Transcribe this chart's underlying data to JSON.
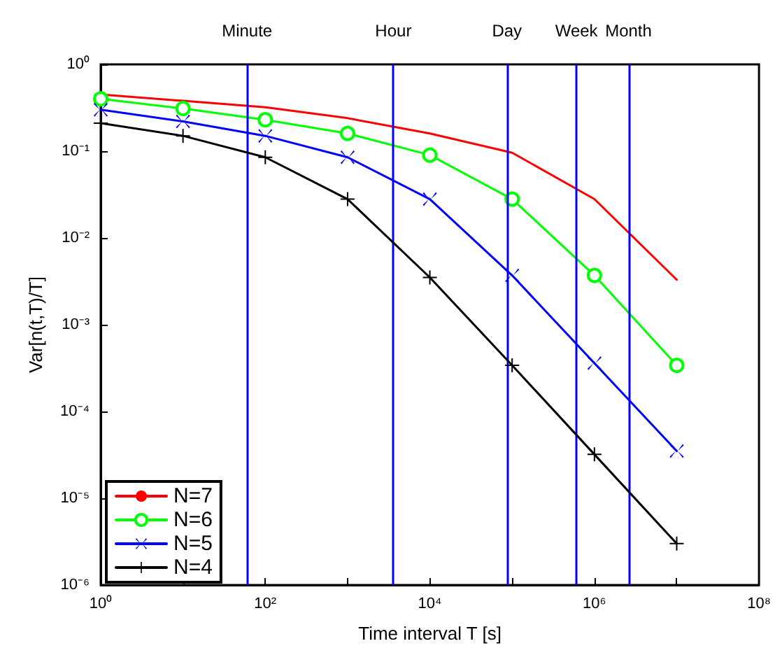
{
  "chart_data": {
    "type": "line",
    "xlabel": "Time interval T [s]",
    "ylabel": "Var[n(t,T)/T]",
    "log": "xy",
    "grid": false,
    "legend": "bottom left",
    "x": [
      1,
      10,
      100,
      1000,
      10000,
      100000,
      1000000,
      10000000
    ],
    "series": [
      {
        "name": "N=7",
        "color": "#ff0000",
        "marker": "none",
        "values": [
          0.45,
          0.38,
          0.32,
          0.24,
          0.16,
          0.096,
          0.028,
          0.0033
        ]
      },
      {
        "name": "N=6",
        "color": "#00ff00",
        "marker": "circle",
        "values": [
          0.4,
          0.31,
          0.23,
          0.16,
          0.09,
          0.028,
          0.0037,
          0.00034
        ]
      },
      {
        "name": "N=5",
        "color": "#0000ff",
        "marker": "x",
        "values": [
          0.3,
          0.22,
          0.15,
          0.085,
          0.028,
          0.0037,
          0.00036,
          3.5e-05
        ]
      },
      {
        "name": "N=4",
        "color": "#000000",
        "marker": "cross",
        "values": [
          0.21,
          0.15,
          0.085,
          0.028,
          0.0035,
          0.00034,
          3.2e-05,
          3e-06
        ]
      }
    ],
    "xlim": [
      1,
      100000000
    ],
    "xticks": [
      {
        "value": 1,
        "label": "10⁰"
      },
      {
        "value": 10,
        "label": null
      },
      {
        "value": 100,
        "label": "10²"
      },
      {
        "value": 1000,
        "label": null
      },
      {
        "value": 10000,
        "label": "10⁴"
      },
      {
        "value": 100000,
        "label": null
      },
      {
        "value": 1000000,
        "label": "10⁶"
      },
      {
        "value": 10000000,
        "label": null
      },
      {
        "value": 100000000,
        "label": "10⁸"
      }
    ],
    "ylim": [
      1e-06,
      1
    ],
    "yticks": [
      {
        "value": 1e-06,
        "label": "10⁻⁶"
      },
      {
        "value": 1e-05,
        "label": "10⁻⁵"
      },
      {
        "value": 0.0001,
        "label": "10⁻⁴"
      },
      {
        "value": 0.001,
        "label": "10⁻³"
      },
      {
        "value": 0.01,
        "label": "10⁻²"
      },
      {
        "value": 0.1,
        "label": "10⁻¹"
      },
      {
        "value": 1,
        "label": "10⁰"
      }
    ],
    "ref_lines": [
      {
        "axis": "x",
        "value": 60,
        "label": "Minute",
        "color": "#0000ff"
      },
      {
        "axis": "x",
        "value": 3600,
        "label": "Hour",
        "color": "#0000ff"
      },
      {
        "axis": "x",
        "value": 86400,
        "label": "Day",
        "color": "#0000ff"
      },
      {
        "axis": "x",
        "value": 604800,
        "label": "Week",
        "color": "#0000ff"
      },
      {
        "axis": "x",
        "value": 2592000,
        "label": "Month",
        "color": "#0000ff"
      }
    ]
  }
}
